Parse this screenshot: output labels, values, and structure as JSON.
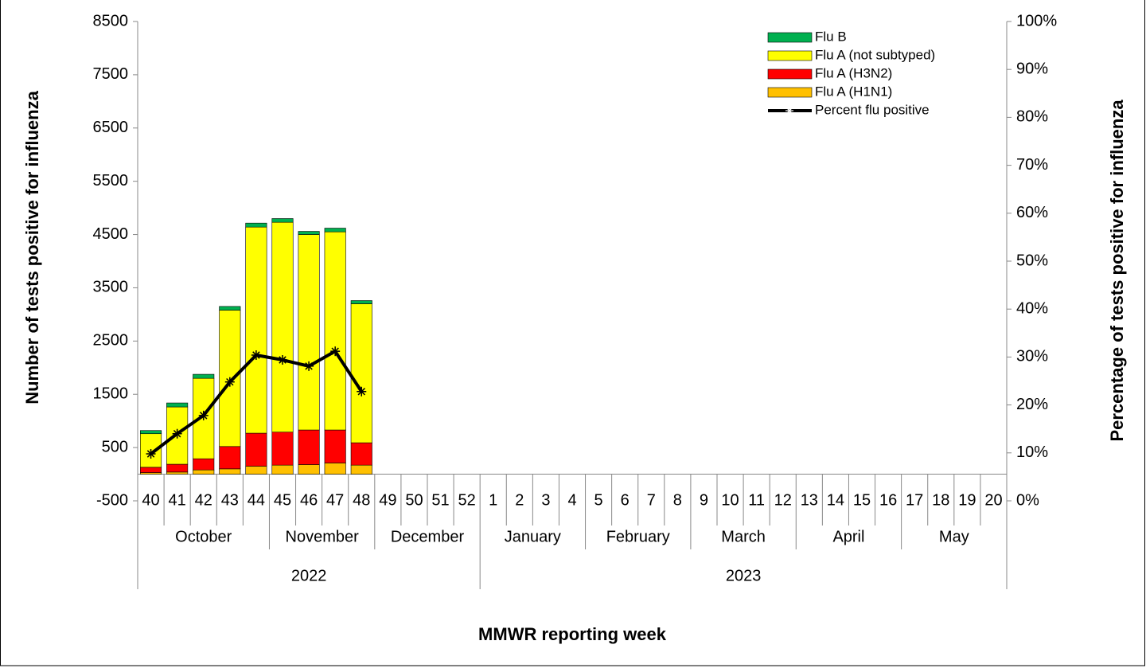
{
  "chart_data": {
    "type": "stacked_bar_line",
    "y_axis_label": "Number of tests positive for influenza",
    "y2_axis_label": "Percentage  of  tests  positive for influenza",
    "x_axis_label": "MMWR reporting week",
    "categories": [
      "40",
      "41",
      "42",
      "43",
      "44",
      "45",
      "46",
      "47",
      "48",
      "49",
      "50",
      "51",
      "52",
      "1",
      "2",
      "3",
      "4",
      "5",
      "6",
      "7",
      "8",
      "9",
      "10",
      "11",
      "12",
      "13",
      "14",
      "15",
      "16",
      "17",
      "18",
      "19",
      "20"
    ],
    "month_labels": [
      "October",
      null,
      null,
      null,
      null,
      "November",
      null,
      null,
      null,
      "December",
      null,
      null,
      null,
      "January",
      null,
      null,
      null,
      "February",
      null,
      null,
      null,
      "March",
      null,
      null,
      null,
      "April",
      null,
      null,
      null,
      "May",
      null,
      null,
      null
    ],
    "year_labels": [
      "2022",
      null,
      null,
      null,
      null,
      null,
      null,
      null,
      null,
      null,
      null,
      null,
      null,
      "2023",
      null,
      null,
      null,
      null,
      null,
      null,
      null,
      null,
      null,
      null,
      null,
      null,
      null,
      null,
      null,
      null,
      null,
      null,
      null
    ],
    "series": [
      {
        "name": "Flu A (H1N1)",
        "color": "#ffc000",
        "values": [
          30,
          40,
          80,
          100,
          150,
          170,
          180,
          210,
          170,
          null,
          null,
          null,
          null,
          null,
          null,
          null,
          null,
          null,
          null,
          null,
          null,
          null,
          null,
          null,
          null,
          null,
          null,
          null,
          null,
          null,
          null,
          null,
          null
        ]
      },
      {
        "name": "Flu A (H3N2)",
        "color": "#ff0000",
        "values": [
          100,
          147,
          210,
          420,
          620,
          620,
          650,
          620,
          420,
          null,
          null,
          null,
          null,
          null,
          null,
          null,
          null,
          null,
          null,
          null,
          null,
          null,
          null,
          null,
          null,
          null,
          null,
          null,
          null,
          null,
          null,
          null,
          null
        ]
      },
      {
        "name": "Flu A (not subtyped)",
        "color": "#ffff00",
        "values": [
          630,
          1076,
          1510,
          2560,
          3870,
          3940,
          3670,
          3720,
          2610,
          null,
          null,
          null,
          null,
          null,
          null,
          null,
          null,
          null,
          null,
          null,
          null,
          null,
          null,
          null,
          null,
          null,
          null,
          null,
          null,
          null,
          null,
          null,
          null
        ]
      },
      {
        "name": "Flu B",
        "color": "#00b050",
        "values": [
          60,
          75,
          76,
          70,
          75,
          70,
          60,
          70,
          60,
          null,
          null,
          null,
          null,
          null,
          null,
          null,
          null,
          null,
          null,
          null,
          null,
          null,
          null,
          null,
          null,
          null,
          null,
          null,
          null,
          null,
          null,
          null,
          null
        ]
      },
      {
        "name": "Percent flu positive",
        "color": "#000000",
        "axis": "y2",
        "type": "line",
        "values": [
          9.8,
          14,
          17.8,
          24.8,
          30.4,
          29.4,
          28.1,
          31.2,
          22.8,
          null,
          null,
          null,
          null,
          null,
          null,
          null,
          null,
          null,
          null,
          null,
          null,
          null,
          null,
          null,
          null,
          null,
          null,
          null,
          null,
          null,
          null,
          null,
          null
        ]
      }
    ],
    "ylim": [
      -500,
      8500
    ],
    "yticks": [
      -500,
      500,
      1500,
      2500,
      3500,
      4500,
      5500,
      6500,
      7500,
      8500
    ],
    "y2lim": [
      0,
      100
    ],
    "y2ticks": [
      {
        "value": 0,
        "label": "0%"
      },
      {
        "value": 10,
        "label": "10%"
      },
      {
        "value": 20,
        "label": "20%"
      },
      {
        "value": 30,
        "label": "30%"
      },
      {
        "value": 40,
        "label": "40%"
      },
      {
        "value": 50,
        "label": "50%"
      },
      {
        "value": 60,
        "label": "60%"
      },
      {
        "value": 70,
        "label": "70%"
      },
      {
        "value": 80,
        "label": "80%"
      },
      {
        "value": 90,
        "label": "90%"
      },
      {
        "value": 100,
        "label": "100%"
      }
    ],
    "legend": "top-right",
    "grid": false
  }
}
